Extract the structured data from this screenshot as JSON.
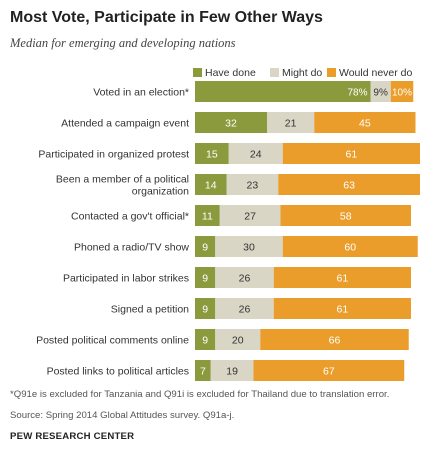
{
  "chart_data": {
    "type": "bar",
    "orientation": "horizontal",
    "stacked": true,
    "title": "Most Vote, Participate in Few Other Ways",
    "subtitle": "Median for emerging and developing nations",
    "categories": [
      [
        "Voted in an election*"
      ],
      [
        "Attended a campaign event"
      ],
      [
        "Participated in organized protest"
      ],
      [
        "Been a member of a political",
        "organization"
      ],
      [
        "Contacted a gov't official*"
      ],
      [
        "Phoned a radio/TV show"
      ],
      [
        "Participated in labor strikes"
      ],
      [
        "Signed a petition"
      ],
      [
        "Posted political comments online"
      ],
      [
        "Posted links to political articles"
      ]
    ],
    "series": [
      {
        "name": "Have done",
        "color": "#8a9a3c",
        "values": [
          78,
          32,
          15,
          14,
          11,
          9,
          9,
          9,
          9,
          7
        ]
      },
      {
        "name": "Might do",
        "color": "#d9d6c6",
        "values": [
          9,
          21,
          24,
          23,
          27,
          30,
          26,
          26,
          20,
          19
        ]
      },
      {
        "name": "Would never do",
        "color": "#eb9d2b",
        "values": [
          10,
          45,
          61,
          63,
          58,
          60,
          61,
          61,
          66,
          67
        ]
      }
    ],
    "value_labels": [
      [
        "78%",
        "9%",
        "10%"
      ],
      [
        "32",
        "21",
        "45"
      ],
      [
        "15",
        "24",
        "61"
      ],
      [
        "14",
        "23",
        "63"
      ],
      [
        "11",
        "27",
        "58"
      ],
      [
        "9",
        "30",
        "60"
      ],
      [
        "9",
        "26",
        "61"
      ],
      [
        "9",
        "26",
        "61"
      ],
      [
        "9",
        "20",
        "66"
      ],
      [
        "7",
        "19",
        "67"
      ]
    ],
    "legend_position": "top-right",
    "grid": false
  },
  "notes": {
    "footnote": "*Q91e is excluded for Tanzania and Q91i is excluded for Thailand due to translation error.",
    "source": "Source: Spring 2014 Global Attitudes survey. Q91a-j.",
    "organization": "PEW RESEARCH CENTER"
  }
}
